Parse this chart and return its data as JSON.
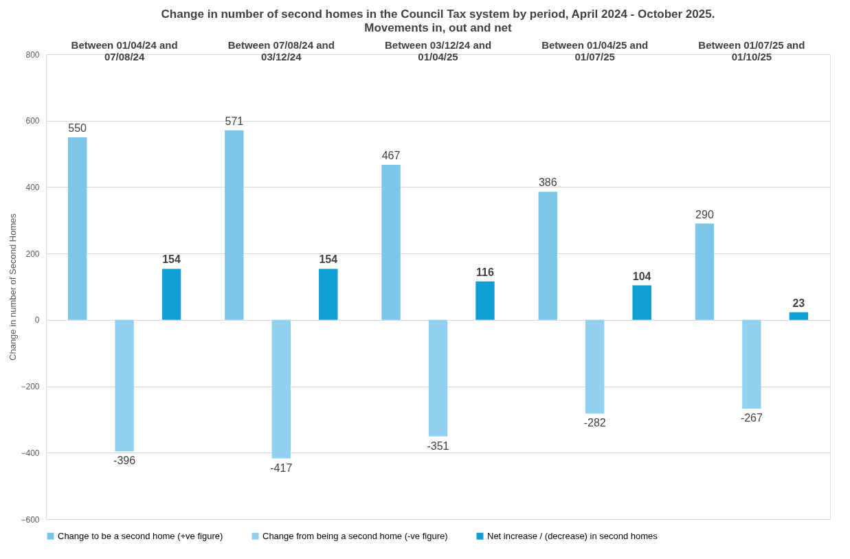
{
  "chart_data": {
    "type": "bar",
    "title": "Change in number of second homes in the Council Tax system by period, April 2024 - October 2025.",
    "subtitle": "Movements in, out and net",
    "ylabel": "Change in number of Second Homes",
    "categories": [
      "Between 01/04/24 and 07/08/24",
      "Between 07/08/24 and 03/12/24",
      "Between 03/12/24 and 01/04/25",
      "Between 01/04/25 and 01/07/25",
      "Between 01/07/25 and 01/10/25"
    ],
    "series": [
      {
        "name": "Change to be a second home (+ve figure)",
        "color": "#7cc6ea",
        "values": [
          550,
          571,
          467,
          386,
          290
        ]
      },
      {
        "name": "Change from being a second home (-ve figure)",
        "color": "#92d0ef",
        "values": [
          -396,
          -417,
          -351,
          -282,
          -267
        ]
      },
      {
        "name": "Net increase / (decrease) in second homes",
        "color": "#119fd6",
        "values": [
          154,
          154,
          116,
          104,
          23
        ]
      }
    ],
    "ylim": [
      -600,
      800
    ],
    "yticks": [
      -600,
      -400,
      -200,
      0,
      200,
      400,
      600,
      800
    ],
    "grid": "y",
    "legend": "bottom",
    "data_labels": true
  }
}
